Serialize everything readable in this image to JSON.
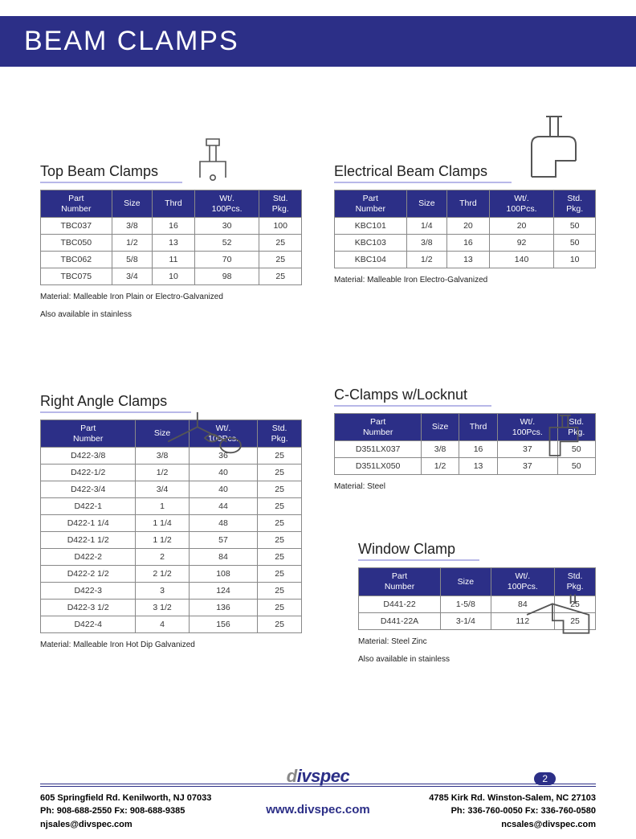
{
  "page": {
    "title": "BEAM CLAMPS",
    "header_bg": "#2c2f87",
    "header_color": "#ffffff",
    "page_number": "2"
  },
  "tables": {
    "top_beam": {
      "title": "Top Beam Clamps",
      "columns": [
        "Part\nNumber",
        "Size",
        "Thrd",
        "Wt/.\n100Pcs.",
        "Std.\nPkg."
      ],
      "rows": [
        [
          "TBC037",
          "3/8",
          "16",
          "30",
          "100"
        ],
        [
          "TBC050",
          "1/2",
          "13",
          "52",
          "25"
        ],
        [
          "TBC062",
          "5/8",
          "11",
          "70",
          "25"
        ],
        [
          "TBC075",
          "3/4",
          "10",
          "98",
          "25"
        ]
      ],
      "note1": "Material: Malleable Iron Plain or Electro-Galvanized",
      "note2": "Also available in stainless"
    },
    "electrical": {
      "title": "Electrical Beam Clamps",
      "columns": [
        "Part\nNumber",
        "Size",
        "Thrd",
        "Wt/.\n100Pcs.",
        "Std.\nPkg."
      ],
      "rows": [
        [
          "KBC101",
          "1/4",
          "20",
          "20",
          "50"
        ],
        [
          "KBC103",
          "3/8",
          "16",
          "92",
          "50"
        ],
        [
          "KBC104",
          "1/2",
          "13",
          "140",
          "10"
        ]
      ],
      "note1": "Material: Malleable Iron Electro-Galvanized"
    },
    "right_angle": {
      "title": "Right Angle Clamps",
      "columns": [
        "Part\nNumber",
        "Size",
        "Wt/.\n100Pcs.",
        "Std.\nPkg."
      ],
      "rows": [
        [
          "D422-3/8",
          "3/8",
          "36",
          "25"
        ],
        [
          "D422-1/2",
          "1/2",
          "40",
          "25"
        ],
        [
          "D422-3/4",
          "3/4",
          "40",
          "25"
        ],
        [
          "D422-1",
          "1",
          "44",
          "25"
        ],
        [
          "D422-1 1/4",
          "1 1/4",
          "48",
          "25"
        ],
        [
          "D422-1 1/2",
          "1 1/2",
          "57",
          "25"
        ],
        [
          "D422-2",
          "2",
          "84",
          "25"
        ],
        [
          "D422-2 1/2",
          "2 1/2",
          "108",
          "25"
        ],
        [
          "D422-3",
          "3",
          "124",
          "25"
        ],
        [
          "D422-3 1/2",
          "3 1/2",
          "136",
          "25"
        ],
        [
          "D422-4",
          "4",
          "156",
          "25"
        ]
      ],
      "note1": "Material: Malleable Iron Hot Dip Galvanized"
    },
    "c_clamps": {
      "title": "C-Clamps w/Locknut",
      "columns": [
        "Part\nNumber",
        "Size",
        "Thrd",
        "Wt/.\n100Pcs.",
        "Std.\nPkg."
      ],
      "rows": [
        [
          "D351LX037",
          "3/8",
          "16",
          "37",
          "50"
        ],
        [
          "D351LX050",
          "1/2",
          "13",
          "37",
          "50"
        ]
      ],
      "note1": "Material: Steel"
    },
    "window": {
      "title": "Window Clamp",
      "columns": [
        "Part\nNumber",
        "Size",
        "Wt/.\n100Pcs.",
        "Std.\nPkg."
      ],
      "rows": [
        [
          "D441-22",
          "1-5/8",
          "84",
          "25"
        ],
        [
          "D441-22A",
          "3-1/4",
          "112",
          "25"
        ]
      ],
      "note1": "Material: Steel Zinc",
      "note2": "Also available in stainless"
    }
  },
  "footer": {
    "left": {
      "addr": "605 Springfield Rd. Kenilworth, NJ 07033",
      "phone": "Ph: 908-688-2550 Fx: 908-688-9385",
      "email": "njsales@divspec.com"
    },
    "right": {
      "addr": "4785 Kirk Rd. Winston-Salem, NC 27103",
      "phone": "Ph: 336-760-0050 Fx: 336-760-0580",
      "email": "ncsales@divspec.com"
    },
    "website": "www.divspec.com",
    "logo": "divspec"
  }
}
